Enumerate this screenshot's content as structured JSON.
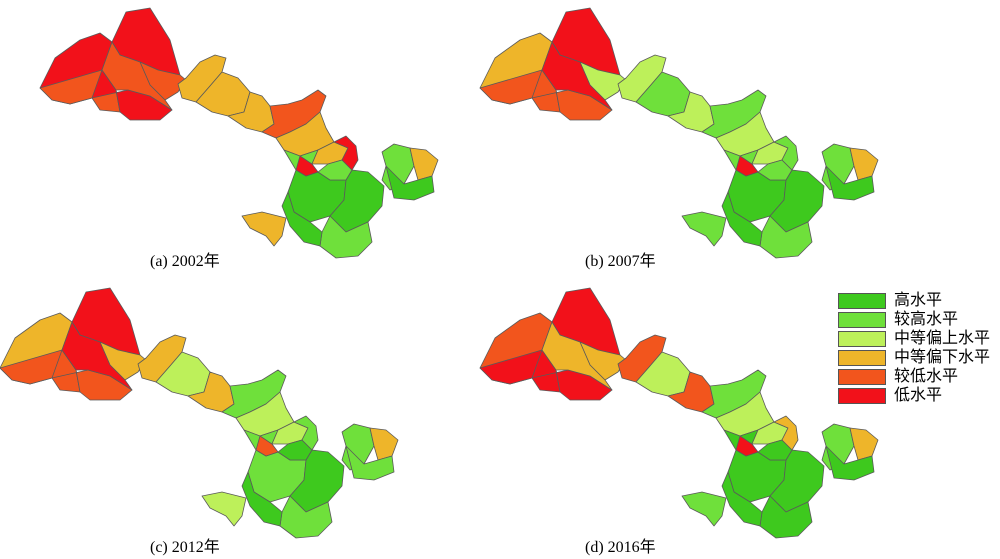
{
  "colors": {
    "high": "#3ec91e",
    "rel_high": "#6fe03b",
    "mid_upper": "#bdf05a",
    "mid_lower": "#eeb52a",
    "rel_low": "#f2551d",
    "low": "#f2111a"
  },
  "legend": [
    {
      "label": "高水平",
      "color": "#3ec91e"
    },
    {
      "label": "较高水平",
      "color": "#6fe03b"
    },
    {
      "label": "中等偏上水平",
      "color": "#bdf05a"
    },
    {
      "label": "中等偏下水平",
      "color": "#eeb52a"
    },
    {
      "label": "较低水平",
      "color": "#f2551d"
    },
    {
      "label": "低水平",
      "color": "#f2111a"
    }
  ],
  "panels": [
    {
      "caption": "(a) 2002年",
      "west": {
        "nw": "low",
        "n": "low",
        "w": "rel_low",
        "sw": "low",
        "e": "rel_low",
        "c": "rel_low"
      },
      "corridor": [
        "mid_lower",
        "mid_lower",
        "mid_lower",
        "rel_low",
        "mid_lower"
      ],
      "center": [
        "rel_high",
        "mid_lower",
        "low",
        "rel_high",
        "low"
      ],
      "south": [
        "high",
        "high",
        "rel_high",
        "high"
      ],
      "east": [
        "rel_high",
        "mid_lower",
        "high"
      ],
      "tibet": "mid_lower"
    },
    {
      "caption": "(b) 2007年",
      "west": {
        "nw": "mid_lower",
        "n": "low",
        "w": "rel_low",
        "sw": "rel_low",
        "e": "mid_upper",
        "c": "low"
      },
      "corridor": [
        "mid_upper",
        "rel_high",
        "mid_upper",
        "rel_high",
        "mid_upper"
      ],
      "center": [
        "rel_high",
        "mid_upper",
        "low",
        "rel_high",
        "rel_high"
      ],
      "south": [
        "high",
        "high",
        "rel_high",
        "high"
      ],
      "east": [
        "rel_high",
        "mid_lower",
        "high"
      ],
      "tibet": "rel_high"
    },
    {
      "caption": "(c) 2012年",
      "west": {
        "nw": "mid_lower",
        "n": "low",
        "w": "rel_low",
        "sw": "rel_low",
        "e": "mid_lower",
        "c": "low"
      },
      "corridor": [
        "mid_lower",
        "mid_upper",
        "mid_lower",
        "rel_high",
        "mid_upper"
      ],
      "center": [
        "rel_high",
        "mid_upper",
        "rel_low",
        "high",
        "rel_high"
      ],
      "south": [
        "rel_high",
        "high",
        "rel_high",
        "high"
      ],
      "east": [
        "rel_high",
        "mid_lower",
        "rel_high"
      ],
      "tibet": "mid_upper"
    },
    {
      "caption": "(d) 2016年",
      "west": {
        "nw": "rel_low",
        "n": "low",
        "w": "low",
        "sw": "low",
        "e": "mid_lower",
        "c": "mid_lower"
      },
      "corridor": [
        "rel_low",
        "mid_upper",
        "rel_low",
        "rel_high",
        "mid_upper"
      ],
      "center": [
        "high",
        "mid_upper",
        "low",
        "high",
        "mid_lower"
      ],
      "south": [
        "high",
        "high",
        "high",
        "high"
      ],
      "east": [
        "rel_high",
        "mid_lower",
        "high"
      ],
      "tibet": "rel_high"
    }
  ]
}
